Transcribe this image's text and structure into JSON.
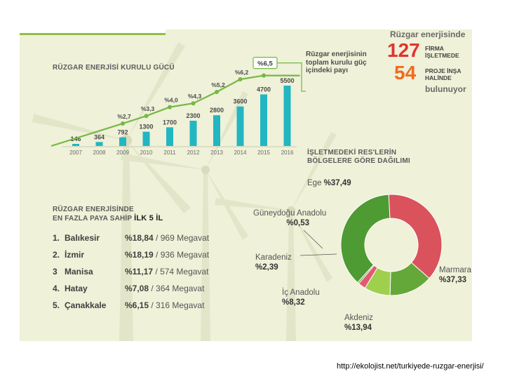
{
  "installed_chart": {
    "title": "RÜZGAR ENERJİSİ KURULU GÜCÜ",
    "note": "Rüzgar enerjisinin toplam kurulu güç içindeki payı"
  },
  "companies": {
    "heading": "Rüzgar enerjisinde",
    "operating_count": "127",
    "operating_label": "FİRMA İŞLETMEDE",
    "project_count": "54",
    "project_label": "PROJE İNŞA HALİNDE",
    "tail": "bulunuyor"
  },
  "top_cities": {
    "title_line1": "RÜZGAR ENERJİSİNDE",
    "title_line2_prefix": "EN FAZLA PAYA SAHİP ",
    "title_line2_bold": "İLK 5 İL",
    "rows": [
      {
        "rank": "1.",
        "name": "Balıkesir",
        "share": "%18,84",
        "sep": " / ",
        "capacity": "969 Megavat"
      },
      {
        "rank": "2.",
        "name": "İzmir",
        "share": "%18,19",
        "sep": " / ",
        "capacity": "936 Megavat"
      },
      {
        "rank": "3",
        "name": "Manisa",
        "share": "%11,17",
        "sep": " / ",
        "capacity": "574 Megavat"
      },
      {
        "rank": "4.",
        "name": "Hatay",
        "share": "%7,08",
        "sep": " / ",
        "capacity": "364 Megavat"
      },
      {
        "rank": "5.",
        "name": "Çanakkale",
        "share": "%6,15",
        "sep": " / ",
        "capacity": "316 Megavat"
      }
    ]
  },
  "regions": {
    "title_line1": "İŞLETMEDEKİ RES'LERİN",
    "title_line2": "BÖLGELERE GÖRE DAĞILIMI"
  },
  "source_url": "http://ekolojist.net/turkiyede-ruzgar-enerjisi/",
  "colors": {
    "bar": "#21b6c2",
    "line": "#74b844",
    "dark_text": "#555555",
    "red_number": "#e2332f",
    "orange_number": "#f26a22",
    "panel_bg": "#eff1d8",
    "ege": "#4e9a33",
    "marmara": "#d9525c",
    "akdeniz": "#65a83a",
    "ic_anadolu": "#9fd04d",
    "karadeniz": "#e15a6f",
    "guneydogu": "#5da843"
  },
  "chart_data": [
    {
      "type": "bar",
      "title": "RÜZGAR ENERJİSİ KURULU GÜCÜ",
      "categories": [
        "2007",
        "2008",
        "2009",
        "2010",
        "2011",
        "2012",
        "2013",
        "2014",
        "2015",
        "2016"
      ],
      "series": [
        {
          "values": [
            146,
            364,
            792,
            1300,
            1700,
            2300,
            2800,
            3600,
            4700,
            5500
          ]
        },
        {
          "name": "Rüzgar enerjisinin toplam kurulu güç içindeki payı",
          "type": "line",
          "values": [
            null,
            null,
            2.7,
            3.3,
            4.0,
            4.3,
            5.2,
            6.2,
            6.5,
            null
          ],
          "labels": [
            null,
            null,
            "%2,7",
            "%3,3",
            "%4,0",
            "%4,3",
            "%5,2",
            "%6,2",
            "%6,5",
            null
          ]
        }
      ],
      "bar_labels": [
        "146",
        "364",
        "792",
        "1300",
        "1700",
        "2300",
        "2800",
        "3600",
        "4700",
        "5500"
      ],
      "ylim": [
        0,
        5500
      ],
      "grid": false
    },
    {
      "type": "pie",
      "title": "İŞLETMEDEKİ RES'LERİN BÖLGELERE GÖRE DAĞILIMI",
      "donut": true,
      "slices": [
        {
          "name": "Ege",
          "label": "%37,49",
          "value": 37.49
        },
        {
          "name": "Marmara",
          "label": "%37,33",
          "value": 37.33
        },
        {
          "name": "Akdeniz",
          "label": "%13,94",
          "value": 13.94
        },
        {
          "name": "İç Anadolu",
          "label": "%8,32",
          "value": 8.32
        },
        {
          "name": "Karadeniz",
          "label": "%2,39",
          "value": 2.39
        },
        {
          "name": "Güneydoğu Anadolu",
          "label": "%0,53",
          "value": 0.53
        }
      ]
    }
  ]
}
